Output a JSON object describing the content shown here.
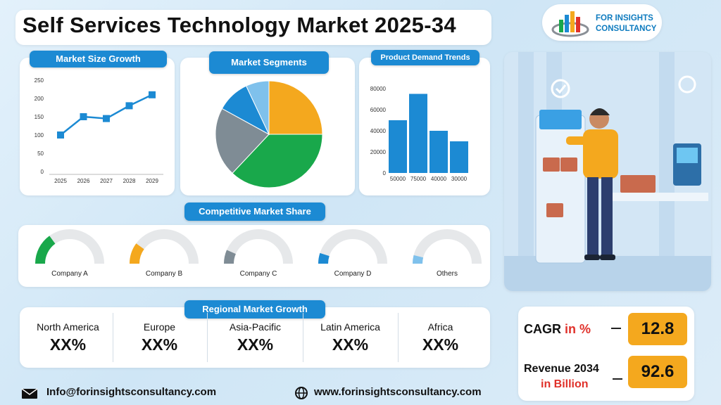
{
  "title": "Self Services Technology Market 2025-34",
  "logo": {
    "line1": "FOR INSIGHTS",
    "line2": "CONSULTANCY"
  },
  "sections": {
    "market_size": "Market Size Growth",
    "market_segments": "Market Segments",
    "product_demand": "Product Demand Trends",
    "competitive": "Competitive Market Share",
    "regional": "Regional Market Growth"
  },
  "chart_data": [
    {
      "type": "line",
      "x": [
        "2025",
        "2026",
        "2027",
        "2028",
        "2029"
      ],
      "values": [
        100,
        150,
        145,
        180,
        210
      ],
      "y_ticks": [
        0,
        50,
        100,
        150,
        200,
        250
      ],
      "ylim": [
        0,
        250
      ],
      "color": "#1c8ad3"
    },
    {
      "type": "pie",
      "values": [
        25,
        37,
        21,
        10,
        7
      ],
      "colors": [
        "#f4a81e",
        "#19a84b",
        "#7f8c95",
        "#1c8ad3",
        "#7fc1ec"
      ]
    },
    {
      "type": "bar",
      "categories": [
        "50000",
        "75000",
        "40000",
        "30000"
      ],
      "values": [
        50000,
        75000,
        40000,
        30000
      ],
      "y_ticks": [
        0,
        20000,
        40000,
        60000,
        80000
      ],
      "ylim": [
        0,
        80000
      ],
      "color": "#1c8ad3"
    }
  ],
  "gauges": [
    {
      "label": "Company A",
      "fill": 0.3,
      "color": "#19a84b"
    },
    {
      "label": "Company B",
      "fill": 0.2,
      "color": "#f4a81e"
    },
    {
      "label": "Company C",
      "fill": 0.13,
      "color": "#7f8c95"
    },
    {
      "label": "Company D",
      "fill": 0.1,
      "color": "#1c8ad3"
    },
    {
      "label": "Others",
      "fill": 0.08,
      "color": "#7fc1ec"
    }
  ],
  "regions": [
    {
      "name": "North America",
      "value": "XX%"
    },
    {
      "name": "Europe",
      "value": "XX%"
    },
    {
      "name": "Asia-Pacific",
      "value": "XX%"
    },
    {
      "name": "Latin America",
      "value": "XX%"
    },
    {
      "name": "Africa",
      "value": "XX%"
    }
  ],
  "stats": {
    "cagr_label": "CAGR",
    "cagr_unit": "in %",
    "cagr_value": "12.8",
    "revenue_label": "Revenue 2034",
    "revenue_unit": "in Billion",
    "revenue_value": "92.6"
  },
  "footer": {
    "email": "Info@forinsightsconsultancy.com",
    "website": "www.forinsightsconsultancy.com"
  },
  "colors": {
    "accent": "#1c8ad3",
    "highlight": "#f4a81e",
    "unit_red": "#e0312a"
  }
}
